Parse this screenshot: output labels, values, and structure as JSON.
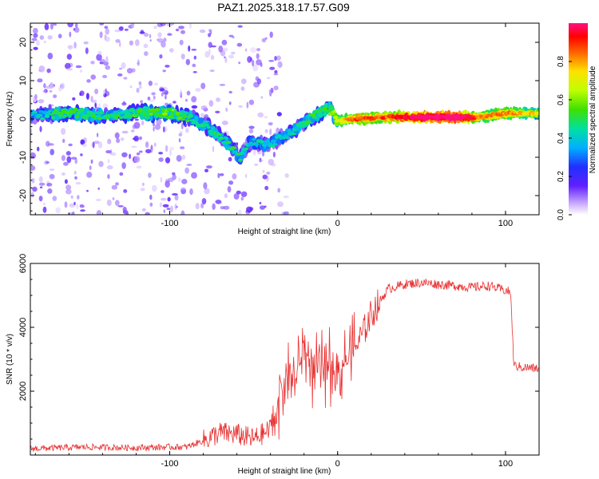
{
  "title": "PAZ1.2025.318.17.57.G09",
  "colors": {
    "snr_line": "#e83030",
    "ridge_low": "#3a1fd8",
    "ridge_mid": "#18d0d0",
    "ridge_high": "#e01010",
    "speckle": "#9a60f0"
  },
  "chart_data": [
    {
      "type": "heatmap",
      "name": "spectrogram",
      "xlabel": "Height of straight line (km)",
      "ylabel": "Frequency (Hz)",
      "xlim": [
        -183,
        120
      ],
      "ylim": [
        -25,
        25
      ],
      "x_ticks": [
        -100,
        0,
        100
      ],
      "y_ticks": [
        -20,
        -10,
        0,
        10,
        20
      ],
      "ridge": [
        {
          "x": -180,
          "f": 1.0,
          "a": 0.25
        },
        {
          "x": -160,
          "f": 1.5,
          "a": 0.4
        },
        {
          "x": -140,
          "f": 1.0,
          "a": 0.35
        },
        {
          "x": -120,
          "f": 1.5,
          "a": 0.4
        },
        {
          "x": -100,
          "f": 1.5,
          "a": 0.45
        },
        {
          "x": -88,
          "f": 0.5,
          "a": 0.35
        },
        {
          "x": -78,
          "f": -2.0,
          "a": 0.35
        },
        {
          "x": -68,
          "f": -5.0,
          "a": 0.35
        },
        {
          "x": -58,
          "f": -10.0,
          "a": 0.35
        },
        {
          "x": -52,
          "f": -6.0,
          "a": 0.3
        },
        {
          "x": -42,
          "f": -7.0,
          "a": 0.3
        },
        {
          "x": -30,
          "f": -4.0,
          "a": 0.3
        },
        {
          "x": -20,
          "f": -1.0,
          "a": 0.35
        },
        {
          "x": -10,
          "f": 1.5,
          "a": 0.4
        },
        {
          "x": -5,
          "f": 3.0,
          "a": 0.4
        },
        {
          "x": 0,
          "f": -0.5,
          "a": 0.6
        },
        {
          "x": 10,
          "f": 0.0,
          "a": 0.75
        },
        {
          "x": 30,
          "f": 0.5,
          "a": 0.75
        },
        {
          "x": 50,
          "f": 0.5,
          "a": 0.95
        },
        {
          "x": 70,
          "f": 0.5,
          "a": 1.0
        },
        {
          "x": 85,
          "f": 0.5,
          "a": 0.7
        },
        {
          "x": 100,
          "f": 1.5,
          "a": 0.7
        },
        {
          "x": 120,
          "f": 1.5,
          "a": 0.6
        }
      ]
    },
    {
      "type": "line",
      "name": "snr",
      "xlabel": "Height of straight line (km)",
      "ylabel": "SNR (10 * v/v)",
      "xlim": [
        -183,
        120
      ],
      "ylim": [
        0,
        6000
      ],
      "x_ticks": [
        -100,
        0,
        100
      ],
      "y_ticks": [
        2000,
        4000,
        6000
      ],
      "series": [
        {
          "name": "SNR",
          "points": [
            [
              -183,
              200
            ],
            [
              -150,
              250
            ],
            [
              -120,
              230
            ],
            [
              -100,
              250
            ],
            [
              -90,
              250
            ],
            [
              -80,
              450
            ],
            [
              -70,
              700
            ],
            [
              -60,
              650
            ],
            [
              -50,
              500
            ],
            [
              -40,
              800
            ],
            [
              -35,
              1800
            ],
            [
              -30,
              2600
            ],
            [
              -25,
              2400
            ],
            [
              -20,
              3400
            ],
            [
              -15,
              2700
            ],
            [
              -10,
              2600
            ],
            [
              -5,
              2900
            ],
            [
              0,
              2500
            ],
            [
              5,
              3000
            ],
            [
              10,
              3300
            ],
            [
              15,
              3800
            ],
            [
              20,
              4400
            ],
            [
              25,
              4800
            ],
            [
              30,
              5200
            ],
            [
              40,
              5350
            ],
            [
              50,
              5400
            ],
            [
              60,
              5350
            ],
            [
              70,
              5300
            ],
            [
              80,
              5250
            ],
            [
              90,
              5300
            ],
            [
              100,
              5150
            ],
            [
              103,
              5100
            ],
            [
              105,
              2800
            ],
            [
              110,
              2750
            ],
            [
              120,
              2700
            ]
          ]
        }
      ]
    }
  ],
  "colorbar": {
    "label": "Normalized spectral amplitude",
    "range": [
      0,
      1
    ],
    "ticks": [
      0.0,
      0.2,
      0.4,
      0.6,
      0.8
    ]
  }
}
